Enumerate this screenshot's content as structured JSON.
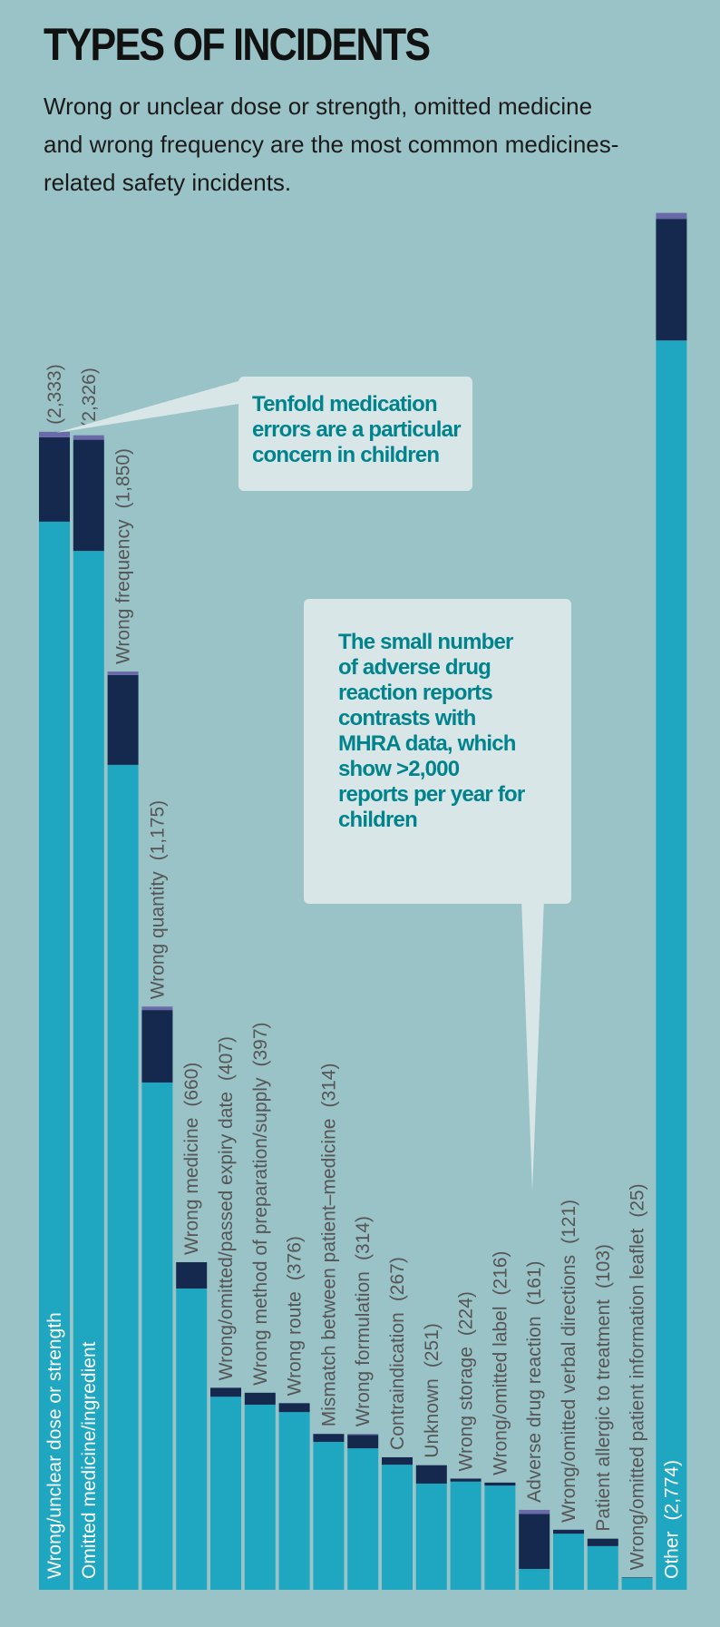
{
  "header": {
    "title": "TYPES OF INCIDENTS",
    "subtitle": "Wrong or unclear dose or strength, omitted medicine and wrong frequency are the most common medicines-related safety incidents."
  },
  "callouts": [
    {
      "text": "Tenfold medication errors are a particular concern in children"
    },
    {
      "text": "The small number of adverse drug reaction reports contrasts with MHRA data, which show >2,000 reports per year for children"
    }
  ],
  "colors": {
    "background": "#9ac3c8",
    "segment_1": "#1fa6c0",
    "segment_2": "#14294d",
    "segment_3": "#6b6aa8",
    "label": "#555555",
    "callout_bg": "#d8e6e8",
    "callout_text": "#00838c"
  },
  "chart_data": {
    "type": "bar",
    "stacked": true,
    "orientation": "vertical",
    "grid": false,
    "ylim": [
      0,
      2800
    ],
    "categories": [
      "Wrong/unclear dose or strength",
      "Omitted medicine/ingredient",
      "Wrong frequency",
      "Wrong quantity",
      "Wrong medicine",
      "Wrong/omitted/passed expiry date",
      "Wrong method of preparation/supply",
      "Wrong route",
      "Mismatch between patient–medicine",
      "Wrong formulation",
      "Contraindication",
      "Unknown",
      "Wrong storage",
      "Wrong/omitted label",
      "Adverse drug reaction",
      "Wrong/omitted verbal directions",
      "Patient allergic to treatment",
      "Wrong/omitted patient information leaflet",
      "Other"
    ],
    "value_labels": [
      "(2,333)",
      "(2,326)",
      "(1,850)",
      "(1,175)",
      "(660)",
      "(407)",
      "(397)",
      "(376)",
      "(314)",
      "(314)",
      "(267)",
      "(251)",
      "(224)",
      "(216)",
      "(161)",
      "(121)",
      "(103)",
      "(25)",
      "(2,774)"
    ],
    "values": [
      2333,
      2326,
      1850,
      1175,
      660,
      407,
      397,
      376,
      314,
      314,
      267,
      251,
      224,
      216,
      161,
      121,
      103,
      25,
      2774
    ],
    "segments": [
      [
        2152,
        170,
        11
      ],
      [
        2093,
        224,
        9
      ],
      [
        1662,
        181,
        7
      ],
      [
        1022,
        146,
        7
      ],
      [
        607,
        53,
        0
      ],
      [
        389,
        18,
        0
      ],
      [
        373,
        24,
        0
      ],
      [
        358,
        18,
        0
      ],
      [
        298,
        16,
        0
      ],
      [
        285,
        27,
        2
      ],
      [
        252,
        15,
        0
      ],
      [
        214,
        37,
        0
      ],
      [
        218,
        6,
        0
      ],
      [
        210,
        6,
        0
      ],
      [
        42,
        111,
        8
      ],
      [
        113,
        8,
        0
      ],
      [
        88,
        15,
        0
      ],
      [
        24,
        1,
        0
      ],
      [
        2517,
        245,
        12
      ]
    ]
  }
}
